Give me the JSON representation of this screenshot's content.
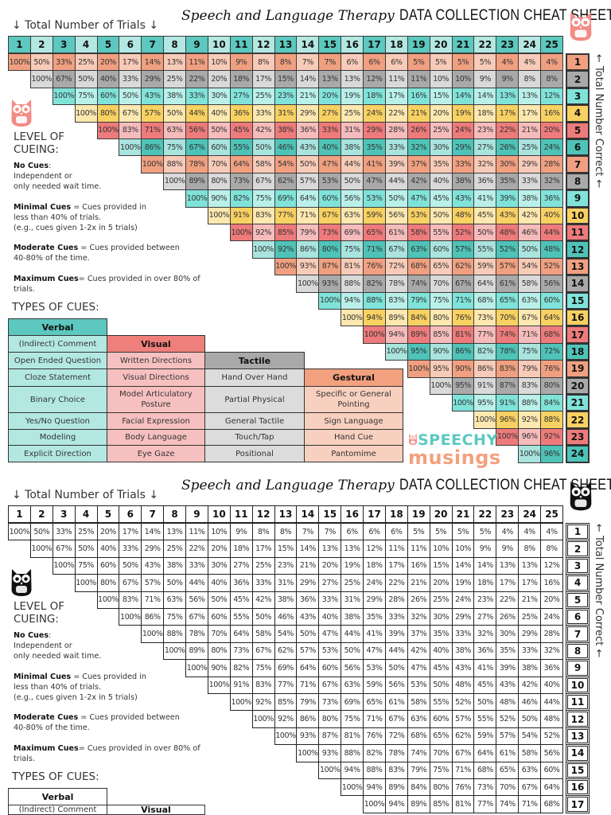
{
  "title": {
    "script": "Speech and Language Therapy",
    "caps": "DATA COLLECTION CHEAT SHEET"
  },
  "trials_label": "↓ Total Number of Trials ↓",
  "correct_label": "← Total Number Correct ←",
  "trials": [
    1,
    2,
    3,
    4,
    5,
    6,
    7,
    8,
    9,
    10,
    11,
    12,
    13,
    14,
    15,
    16,
    17,
    18,
    19,
    20,
    21,
    22,
    23,
    24,
    25
  ],
  "correct": [
    1,
    2,
    3,
    4,
    5,
    6,
    7,
    8,
    9,
    10,
    11,
    12,
    13,
    14,
    15,
    16,
    17,
    18,
    19,
    20,
    21,
    22,
    23,
    24
  ],
  "percent_rows": [
    [
      100,
      50,
      33,
      25,
      20,
      17,
      14,
      13,
      11,
      10,
      9,
      8,
      8,
      7,
      7,
      6,
      6,
      6,
      5,
      5,
      5,
      5,
      4,
      4,
      4
    ],
    [
      100,
      67,
      50,
      40,
      33,
      29,
      25,
      22,
      20,
      18,
      17,
      15,
      14,
      13,
      13,
      12,
      11,
      11,
      10,
      10,
      9,
      9,
      8,
      8
    ],
    [
      100,
      75,
      60,
      50,
      43,
      38,
      33,
      30,
      27,
      25,
      23,
      21,
      20,
      19,
      18,
      17,
      16,
      15,
      14,
      14,
      13,
      13,
      12
    ],
    [
      100,
      80,
      67,
      57,
      50,
      44,
      40,
      36,
      33,
      31,
      29,
      27,
      25,
      24,
      22,
      21,
      20,
      19,
      18,
      17,
      17,
      16
    ],
    [
      100,
      83,
      71,
      63,
      56,
      50,
      45,
      42,
      38,
      36,
      33,
      31,
      29,
      28,
      26,
      25,
      24,
      23,
      22,
      21,
      20
    ],
    [
      100,
      86,
      75,
      67,
      60,
      55,
      50,
      46,
      43,
      40,
      38,
      35,
      33,
      32,
      30,
      29,
      27,
      26,
      25,
      24
    ],
    [
      100,
      88,
      78,
      70,
      64,
      58,
      54,
      50,
      47,
      44,
      41,
      39,
      37,
      35,
      33,
      32,
      30,
      29,
      28
    ],
    [
      100,
      89,
      80,
      73,
      67,
      62,
      57,
      53,
      50,
      47,
      44,
      42,
      40,
      38,
      36,
      35,
      33,
      32
    ],
    [
      100,
      90,
      82,
      75,
      69,
      64,
      60,
      56,
      53,
      50,
      47,
      45,
      43,
      41,
      39,
      38,
      36
    ],
    [
      100,
      91,
      83,
      77,
      71,
      67,
      63,
      59,
      56,
      53,
      50,
      48,
      45,
      43,
      42,
      40
    ],
    [
      100,
      92,
      85,
      79,
      73,
      69,
      65,
      61,
      58,
      55,
      52,
      50,
      48,
      46,
      44
    ],
    [
      100,
      92,
      86,
      80,
      75,
      71,
      67,
      63,
      60,
      57,
      55,
      52,
      50,
      48
    ],
    [
      100,
      93,
      87,
      81,
      76,
      72,
      68,
      65,
      62,
      59,
      57,
      54,
      52
    ],
    [
      100,
      93,
      88,
      82,
      78,
      74,
      70,
      67,
      64,
      61,
      58,
      56
    ],
    [
      100,
      94,
      88,
      83,
      79,
      75,
      71,
      68,
      65,
      63,
      60
    ],
    [
      100,
      94,
      89,
      84,
      80,
      76,
      73,
      70,
      67,
      64
    ],
    [
      100,
      94,
      89,
      85,
      81,
      77,
      74,
      71,
      68
    ],
    [
      100,
      95,
      90,
      86,
      82,
      78,
      75,
      72
    ],
    [
      100,
      95,
      90,
      86,
      83,
      79,
      76
    ],
    [
      100,
      95,
      91,
      87,
      83,
      80
    ],
    [
      100,
      95,
      91,
      88,
      84
    ],
    [
      100,
      96,
      92,
      88
    ],
    [
      100,
      96,
      92
    ],
    [
      100,
      96
    ]
  ],
  "level_of_cueing": {
    "heading": "LEVEL OF CUEING:",
    "items": [
      {
        "term": "No Cues",
        "first": ":",
        "lines": [
          "Independent or",
          "only needed wait time."
        ]
      },
      {
        "term": "Minimal Cues",
        "first": " = Cues provided in",
        "lines": [
          "less than 40% of trials.",
          "(e.g., cues given 1-2x in 5 trials)"
        ]
      },
      {
        "term": "Moderate Cues",
        "first": " = Cues provided between",
        "lines": [
          "40-80% of the time."
        ]
      },
      {
        "term": "Maximum Cues",
        "first": "= Cues provided in over 80% of trials.",
        "lines": []
      }
    ]
  },
  "types_of_cues": {
    "heading": "TYPES OF CUES:",
    "columns": [
      {
        "name": "Verbal",
        "header_color": "#5cc8bf",
        "item_color": "#b3e8e2",
        "items": [
          "(Indirect) Comment",
          "Open Ended Question",
          "Cloze Statement",
          "Binary Choice",
          "Yes/No Question",
          "Modeling",
          "Explicit Direction"
        ]
      },
      {
        "name": "Visual",
        "header_color": "#ef7f7b",
        "item_color": "#f7c0c0",
        "items": [
          "Written Directions",
          "Visual Directions",
          "Model Articulatory Posture",
          "Facial Expression",
          "Body Language",
          "Eye Gaze"
        ]
      },
      {
        "name": "Tactile",
        "header_color": "#a9a9a9",
        "item_color": "#dcdcdc",
        "items": [
          "Hand Over Hand",
          "Partial Physical",
          "General Tactile",
          "Touch/Tap",
          "Positional"
        ]
      },
      {
        "name": "Gestural",
        "header_color": "#f2a07e",
        "item_color": "#f8d0bf",
        "items": [
          "Specific or General Pointing",
          "Sign Language",
          "Hand Cue",
          "Pantomime"
        ]
      }
    ]
  },
  "logo": {
    "line1": "SPEECHY",
    "line2": "musings"
  },
  "colors": {
    "header_dark": "#5cc8bf",
    "header_light": "#b3e8e2",
    "owl_color": "#f48a84",
    "owl_bw": "#111111",
    "row_palette": [
      {
        "dark": "#f0a080",
        "light": "#f8cbb8"
      },
      {
        "dark": "#a9a9a9",
        "light": "#d9d9d9"
      },
      {
        "dark": "#80e3da",
        "light": "#baf0ea"
      },
      {
        "dark": "#f9d162",
        "light": "#fde8b0"
      },
      {
        "dark": "#ee7b7b",
        "light": "#f6bcbc"
      },
      {
        "dark": "#4fc3b8",
        "light": "#a9e4de"
      }
    ]
  },
  "sheets": [
    {
      "theme": "color"
    },
    {
      "theme": "bw"
    }
  ]
}
